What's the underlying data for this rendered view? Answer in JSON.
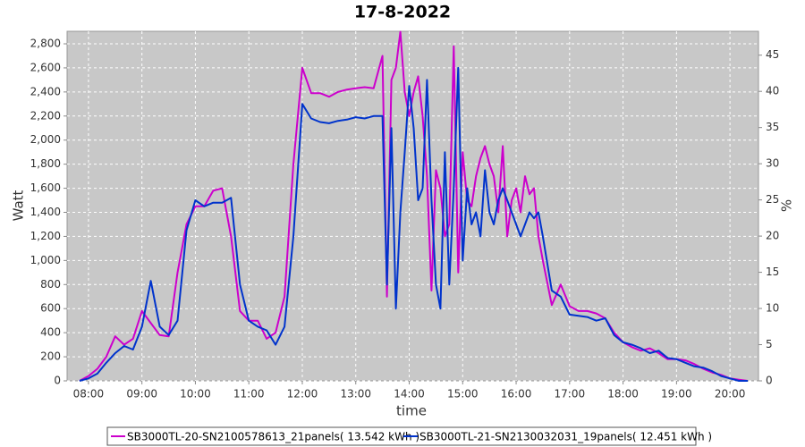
{
  "chart_data": {
    "type": "line",
    "title": "17-8-2022",
    "x_label": "time",
    "y_label": "Watt",
    "y2_label": "%",
    "x": [
      470,
      480,
      490,
      500,
      510,
      520,
      530,
      540,
      550,
      560,
      570,
      580,
      590,
      600,
      610,
      620,
      630,
      640,
      650,
      660,
      670,
      680,
      690,
      700,
      710,
      720,
      730,
      740,
      750,
      760,
      770,
      780,
      790,
      800,
      810,
      815,
      820,
      825,
      830,
      835,
      840,
      845,
      850,
      855,
      860,
      865,
      870,
      875,
      880,
      885,
      890,
      895,
      900,
      905,
      910,
      915,
      920,
      925,
      930,
      935,
      940,
      945,
      950,
      955,
      960,
      965,
      970,
      975,
      980,
      985,
      990,
      1000,
      1010,
      1020,
      1030,
      1040,
      1050,
      1060,
      1070,
      1080,
      1090,
      1100,
      1110,
      1120,
      1130,
      1140,
      1150,
      1160,
      1170,
      1180,
      1190,
      1200,
      1210,
      1220
    ],
    "series": [
      {
        "name": "SB3000TL-20-SN2100578613_21panels( 13.542 kWh )",
        "color": "#cc00cc",
        "values": [
          0,
          40,
          100,
          200,
          370,
          300,
          350,
          580,
          480,
          380,
          370,
          900,
          1300,
          1450,
          1450,
          1580,
          1600,
          1200,
          580,
          500,
          500,
          350,
          400,
          700,
          1800,
          2600,
          2390,
          2390,
          2360,
          2400,
          2420,
          2430,
          2440,
          2430,
          2700,
          700,
          2500,
          2600,
          2900,
          2400,
          2200,
          2400,
          2530,
          2200,
          1700,
          750,
          1750,
          1600,
          1200,
          1300,
          2780,
          900,
          1900,
          1500,
          1450,
          1700,
          1850,
          1950,
          1800,
          1700,
          1400,
          1950,
          1200,
          1500,
          1600,
          1400,
          1700,
          1550,
          1600,
          1200,
          1000,
          630,
          800,
          620,
          580,
          580,
          560,
          520,
          400,
          320,
          280,
          250,
          270,
          230,
          180,
          180,
          170,
          140,
          100,
          70,
          50,
          20,
          10,
          0
        ]
      },
      {
        "name": "SB3000TL-21-SN2130032031_19panels( 12.451 kWh )",
        "color": "#0033cc",
        "values": [
          0,
          20,
          60,
          150,
          230,
          290,
          260,
          450,
          830,
          450,
          380,
          500,
          1250,
          1500,
          1450,
          1480,
          1480,
          1520,
          800,
          500,
          450,
          420,
          300,
          450,
          1200,
          2300,
          2180,
          2150,
          2140,
          2160,
          2170,
          2190,
          2180,
          2200,
          2200,
          800,
          2100,
          600,
          1400,
          1900,
          2450,
          2100,
          1500,
          1600,
          2500,
          1500,
          800,
          600,
          1900,
          800,
          1600,
          2600,
          1000,
          1600,
          1300,
          1400,
          1200,
          1750,
          1400,
          1300,
          1500,
          1600,
          1500,
          1400,
          1300,
          1200,
          1300,
          1400,
          1350,
          1400,
          1200,
          750,
          700,
          550,
          540,
          530,
          500,
          520,
          380,
          320,
          300,
          270,
          230,
          250,
          190,
          180,
          150,
          120,
          110,
          80,
          40,
          20,
          0,
          0
        ]
      }
    ],
    "xlim": [
      456,
      1232
    ],
    "xticks": [
      {
        "value": 480,
        "label": "08:00"
      },
      {
        "value": 540,
        "label": "09:00"
      },
      {
        "value": 600,
        "label": "10:00"
      },
      {
        "value": 660,
        "label": "11:00"
      },
      {
        "value": 720,
        "label": "12:00"
      },
      {
        "value": 780,
        "label": "13:00"
      },
      {
        "value": 840,
        "label": "14:00"
      },
      {
        "value": 900,
        "label": "15:00"
      },
      {
        "value": 960,
        "label": "16:00"
      },
      {
        "value": 1020,
        "label": "17:00"
      },
      {
        "value": 1080,
        "label": "18:00"
      },
      {
        "value": 1140,
        "label": "19:00"
      },
      {
        "value": 1200,
        "label": "20:00"
      }
    ],
    "ylim": [
      0,
      2904
    ],
    "yticks": [
      0,
      200,
      400,
      600,
      800,
      {
        "value": 1000,
        "label": "1,000"
      },
      {
        "value": 1200,
        "label": "1,200"
      },
      {
        "value": 1400,
        "label": "1,400"
      },
      {
        "value": 1600,
        "label": "1,600"
      },
      {
        "value": 1800,
        "label": "1,800"
      },
      {
        "value": 2000,
        "label": "2,000"
      },
      {
        "value": 2200,
        "label": "2,200"
      },
      {
        "value": 2400,
        "label": "2,400"
      },
      {
        "value": 2600,
        "label": "2,600"
      },
      {
        "value": 2800,
        "label": "2,800"
      }
    ],
    "y2lim": [
      0,
      48.3
    ],
    "y2ticks": [
      0,
      5,
      10,
      15,
      20,
      25,
      30,
      35,
      40,
      45
    ],
    "grid": true
  }
}
